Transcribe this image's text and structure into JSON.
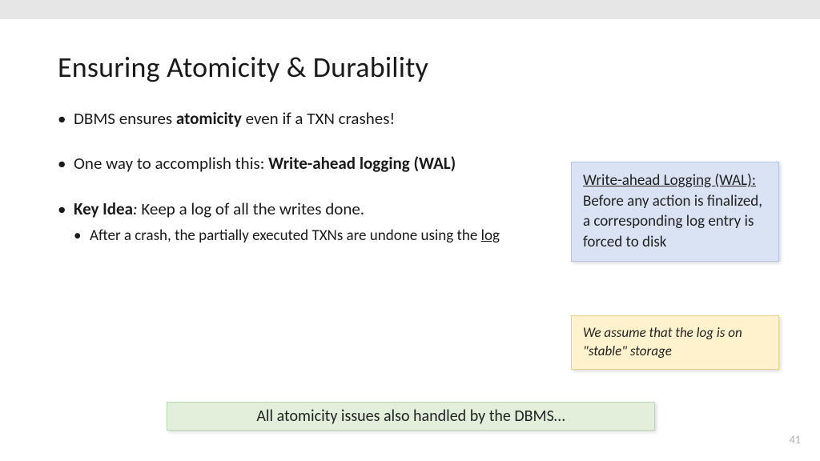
{
  "title": "Ensuring Atomicity & Durability",
  "bullets": {
    "b1_pre": "DBMS ensures ",
    "b1_bold": "atomicity",
    "b1_post": " even if a TXN crashes!",
    "b2_pre": "One way to accomplish this: ",
    "b2_bold": "Write-ahead logging (WAL)",
    "b3_bold": "Key Idea",
    "b3_colon": ":",
    "b3_post": " Keep a log of all the writes done.",
    "b3_sub_pre": "After a crash, the partially executed TXNs are undone using the ",
    "b3_sub_ul": "log"
  },
  "blue": {
    "heading": "Write-ahead Logging (WAL):",
    "rest": " Before any action is finalized, a corresponding log entry is forced to disk"
  },
  "yellow": "We assume that the log is on \"stable\" storage",
  "green": "All atomicity issues also handled by the DBMS…",
  "page": "41",
  "colors": {
    "blue_bg": "#dae3f3",
    "yellow_bg": "#fff2cc",
    "green_bg": "#e2efda",
    "topbar": "#e6e6e6"
  }
}
